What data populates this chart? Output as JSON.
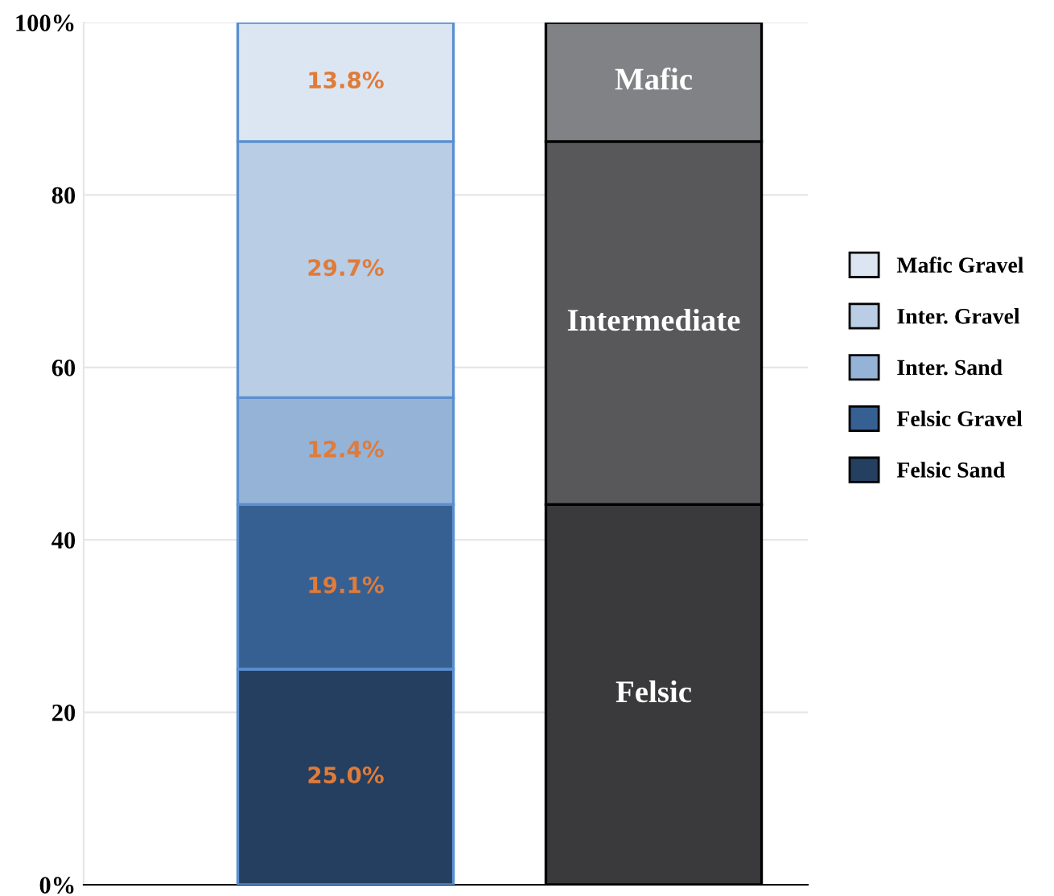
{
  "chart_data": {
    "type": "bar",
    "stacked": true,
    "categories": [
      null,
      null
    ],
    "series": [
      {
        "name": "Felsic Sand",
        "color": "#243f60",
        "values": [
          25.0,
          null
        ],
        "value_labels": [
          "25.0%",
          null
        ]
      },
      {
        "name": "Felsic Gravel",
        "color": "#376092",
        "values": [
          19.1,
          null
        ],
        "value_labels": [
          "19.1%",
          null
        ]
      },
      {
        "name": "Inter. Sand",
        "color": "#95b3d7",
        "values": [
          12.4,
          null
        ],
        "value_labels": [
          "12.4%",
          null
        ]
      },
      {
        "name": "Inter. Gravel",
        "color": "#b9cde5",
        "values": [
          29.7,
          null
        ],
        "value_labels": [
          "29.7%",
          null
        ]
      },
      {
        "name": "Mafic Gravel",
        "color": "#dce6f2",
        "values": [
          13.8,
          null
        ],
        "value_labels": [
          "13.8%",
          null
        ]
      },
      {
        "name": "Felsic",
        "color": "#3a3a3c",
        "values": [
          null,
          44.1
        ]
      },
      {
        "name": "Intermediate",
        "color": "#58585a",
        "values": [
          null,
          42.1
        ]
      },
      {
        "name": "Mafic",
        "color": "#808285",
        "values": [
          null,
          13.8
        ]
      }
    ],
    "ylim": [
      0,
      100
    ],
    "yticks": [
      {
        "value": 0,
        "label": "0%"
      },
      20,
      40,
      60,
      80,
      {
        "value": 100,
        "label": "100%"
      }
    ],
    "grid": "y",
    "legend": "right"
  }
}
